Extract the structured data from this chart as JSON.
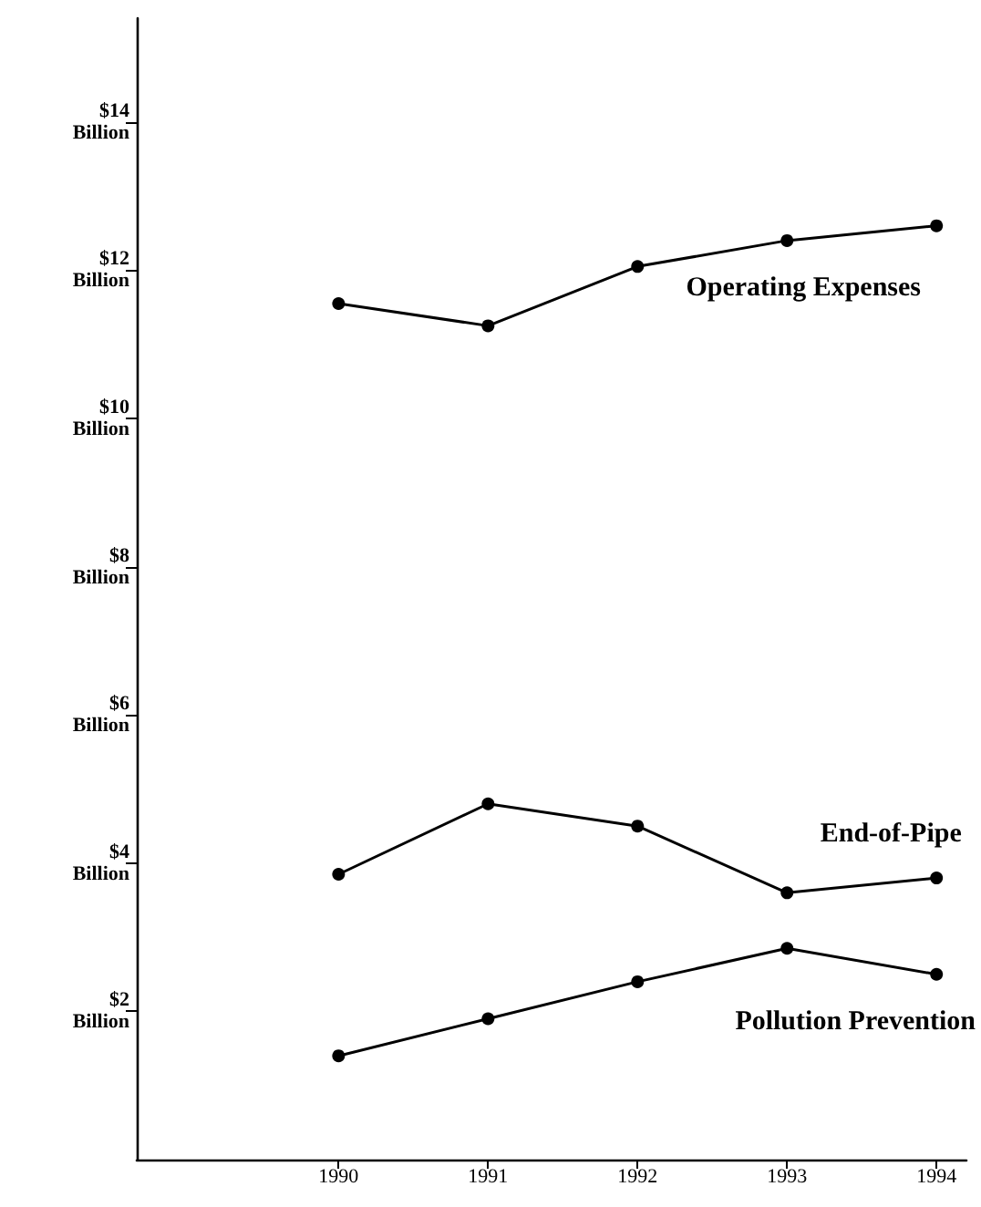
{
  "chart_data": {
    "type": "line",
    "x": [
      1990,
      1991,
      1992,
      1993,
      1994
    ],
    "series": [
      {
        "name": "Operating Expenses",
        "color": "#000000",
        "values": [
          11.55,
          11.25,
          12.05,
          12.4,
          12.6
        ]
      },
      {
        "name": "End-of-Pipe",
        "color": "#000000",
        "values": [
          3.85,
          4.8,
          4.5,
          3.6,
          3.8
        ]
      },
      {
        "name": "Pollution Prevention",
        "color": "#000000",
        "values": [
          1.4,
          1.9,
          2.4,
          2.85,
          2.5
        ]
      }
    ],
    "xlim": [
      1988.65,
      1994.2
    ],
    "xticks": [
      1990,
      1991,
      1992,
      1993,
      1994
    ],
    "ylim": [
      0,
      15.4
    ],
    "yticks": [
      {
        "value": 2,
        "label": "$2 Billion"
      },
      {
        "value": 4,
        "label": "$4 Billion"
      },
      {
        "value": 6,
        "label": "$6 Billion"
      },
      {
        "value": 8,
        "label": "$8 Billion"
      },
      {
        "value": 10,
        "label": "$10 Billion"
      },
      {
        "value": 12,
        "label": "$12 Billion"
      },
      {
        "value": 14,
        "label": "$14 Billion"
      }
    ],
    "grid": false,
    "legend": false,
    "marker": "circle",
    "line_style": "solid"
  }
}
